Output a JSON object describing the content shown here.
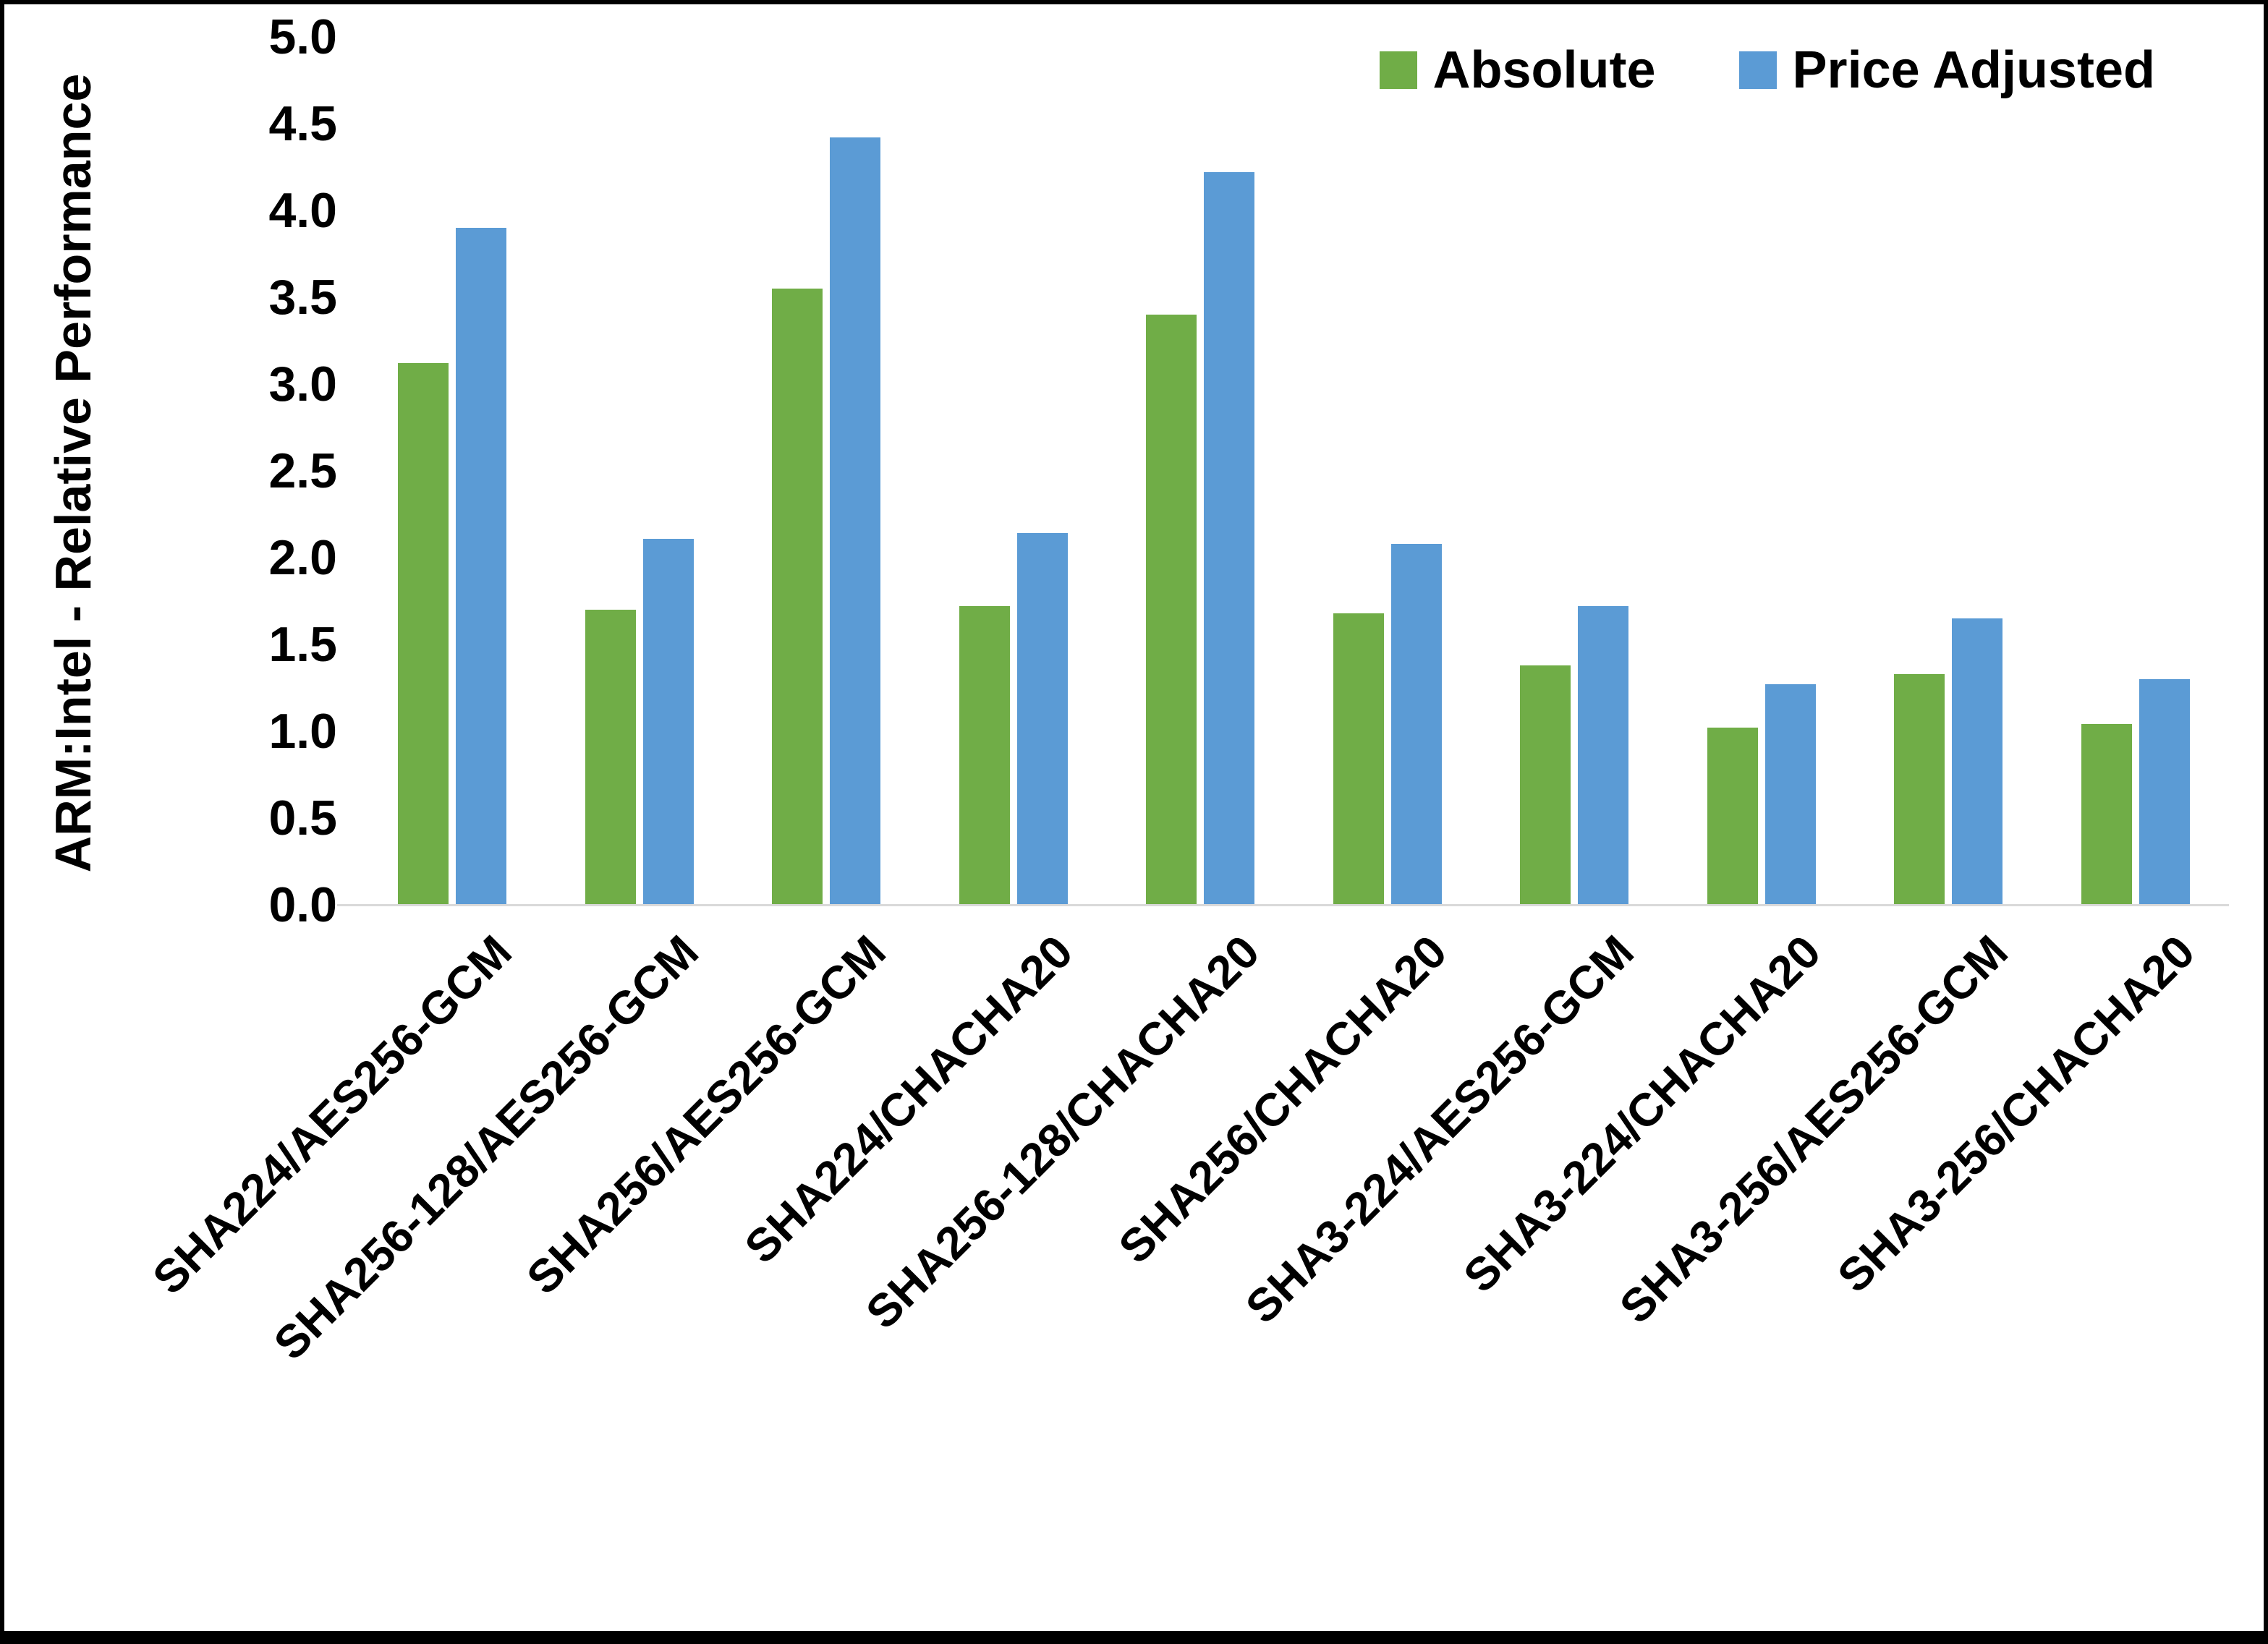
{
  "chart_data": {
    "type": "bar",
    "title": "",
    "xlabel": "",
    "ylabel": "ARM:Intel - Relative Performance",
    "ylim": [
      0,
      5
    ],
    "ytick_step": 0.5,
    "grid": false,
    "legend_position": "top-right",
    "background_color": "#ffffff",
    "axis_line_color": "#d9d9d9",
    "categories": [
      "SHA224/AES256-GCM",
      "SHA256-128/AES256-GCM",
      "SHA256/AES256-GCM",
      "SHA224/CHACHA20",
      "SHA256-128/CHACHA20",
      "SHA256/CHACHA20",
      "SHA3-224/AES256-GCM",
      "SHA3-224/CHACHA20",
      "SHA3-256/AES256-GCM",
      "SHA3-256/CHACHA20"
    ],
    "series": [
      {
        "name": "Absolute",
        "color": "#70AD47",
        "values": [
          3.12,
          1.7,
          3.55,
          1.72,
          3.4,
          1.68,
          1.38,
          1.02,
          1.33,
          1.04
        ]
      },
      {
        "name": "Price Adjusted",
        "color": "#5B9BD5",
        "values": [
          3.9,
          2.11,
          4.42,
          2.14,
          4.22,
          2.08,
          1.72,
          1.27,
          1.65,
          1.3
        ]
      }
    ]
  }
}
